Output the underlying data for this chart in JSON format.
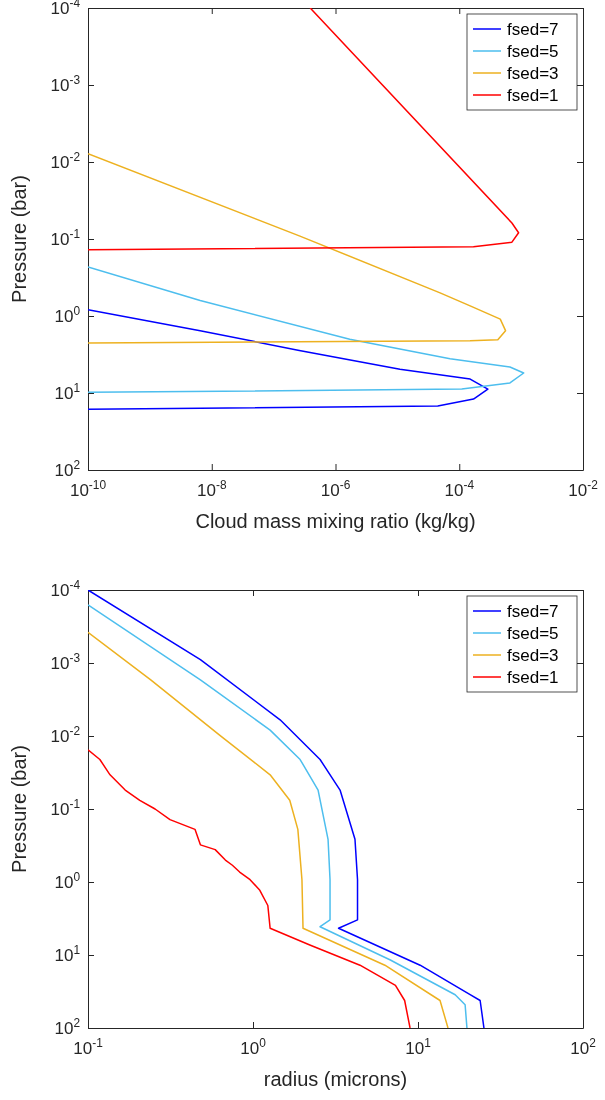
{
  "chart_data": [
    {
      "type": "line",
      "xlabel": "Cloud mass mixing ratio (kg/kg)",
      "ylabel": "Pressure (bar)",
      "log": "xy",
      "legend": "top right",
      "grid": false,
      "xlim": [
        1e-10,
        0.01
      ],
      "xticks": [
        {
          "value": 1e-10,
          "label": "10$^{-10}$"
        },
        {
          "value": 1e-08,
          "label": "10$^{-8}$"
        },
        {
          "value": 1e-06,
          "label": "10$^{-6}$"
        },
        {
          "value": 0.0001,
          "label": "10$^{-4}$"
        },
        {
          "value": 0.01,
          "label": "10$^{-2}$"
        }
      ],
      "ylim": [
        100,
        0.0001
      ],
      "yticks": [
        {
          "value": 0.0001,
          "label": "10$^{-4}$"
        },
        {
          "value": 0.001,
          "label": "10$^{-3}$"
        },
        {
          "value": 0.01,
          "label": "10$^{-2}$"
        },
        {
          "value": 0.1,
          "label": "10$^{-1}$"
        },
        {
          "value": 1,
          "label": "10$^{0}$"
        },
        {
          "value": 10,
          "label": "10$^{1}$"
        },
        {
          "value": 100,
          "label": "10$^{2}$"
        }
      ],
      "series": [
        {
          "name": "fsed=7",
          "color": "#0000ff",
          "x": [
            1e-10,
            6.5e-09,
            2.6e-07,
            1.1e-05,
            0.00015,
            0.00029,
            0.00017,
            4.5e-05,
            1e-10
          ],
          "values": [
            0.83,
            1.55,
            2.8,
            4.9,
            6.6,
            8.9,
            12,
            14.8,
            16.2
          ]
        },
        {
          "name": "fsed=5",
          "color": "#4dbeee",
          "x": [
            1e-10,
            6.5e-09,
            1.7e-06,
            7.1e-05,
            0.00066,
            0.0011,
            0.00066,
            0.00011,
            1e-10
          ],
          "values": [
            0.23,
            0.63,
            2.0,
            3.6,
            4.6,
            5.5,
            7.4,
            8.9,
            9.8
          ]
        },
        {
          "name": "fsed=3",
          "color": "#edb120",
          "x": [
            1e-10,
            2.6e-07,
            4.9e-05,
            0.00015,
            0.00046,
            0.00056,
            0.00042,
            0.00015,
            1e-10
          ],
          "values": [
            0.0078,
            0.091,
            0.5,
            0.74,
            1.1,
            1.55,
            2.04,
            2.1,
            2.24
          ]
        },
        {
          "name": "fsed=1",
          "color": "#ff0000",
          "x": [
            3.9e-07,
            0.00071,
            0.00091,
            0.00071,
            0.00017,
            1e-10
          ],
          "values": [
            0.0001,
            0.062,
            0.083,
            0.11,
            0.126,
            0.138
          ]
        }
      ]
    },
    {
      "type": "line",
      "xlabel": "radius (microns)",
      "ylabel": "Pressure (bar)",
      "log": "xy",
      "legend": "top right",
      "grid": false,
      "xlim": [
        0.1,
        100
      ],
      "xticks": [
        {
          "value": 0.1,
          "label": "10$^{-1}$"
        },
        {
          "value": 1,
          "label": "10$^{0}$"
        },
        {
          "value": 10,
          "label": "10$^{1}$"
        },
        {
          "value": 100,
          "label": "10$^{2}$"
        }
      ],
      "ylim": [
        100,
        0.0001
      ],
      "yticks": [
        {
          "value": 0.0001,
          "label": "10$^{-4}$"
        },
        {
          "value": 0.001,
          "label": "10$^{-3}$"
        },
        {
          "value": 0.01,
          "label": "10$^{-2}$"
        },
        {
          "value": 0.1,
          "label": "10$^{-1}$"
        },
        {
          "value": 1,
          "label": "10$^{0}$"
        },
        {
          "value": 10,
          "label": "10$^{1}$"
        },
        {
          "value": 100,
          "label": "10$^{2}$"
        }
      ],
      "series": [
        {
          "name": "fsed=7",
          "color": "#0000ff",
          "x": [
            0.1,
            0.48,
            1.46,
            2.55,
            3.37,
            4.15,
            4.3,
            4.3,
            3.3,
            10.3,
            20.7,
            23.8,
            25.1
          ],
          "values": [
            0.0001,
            0.0009,
            0.006,
            0.021,
            0.055,
            0.26,
            0.93,
            3.3,
            4.3,
            13.8,
            35,
            42,
            100
          ]
        },
        {
          "name": "fsed=5",
          "color": "#4dbeee",
          "x": [
            0.1,
            0.48,
            1.27,
            1.93,
            2.48,
            2.85,
            2.93,
            2.93,
            2.55,
            6.8,
            16.8,
            19.3,
            19.8
          ],
          "values": [
            0.00016,
            0.0017,
            0.0083,
            0.021,
            0.055,
            0.26,
            0.93,
            3.3,
            4.1,
            11.7,
            35,
            48,
            100
          ]
        },
        {
          "name": "fsed=3",
          "color": "#edb120",
          "x": [
            0.1,
            0.24,
            0.63,
            1.27,
            1.67,
            1.87,
            1.98,
            2.01,
            6.3,
            13.6,
            15.2
          ],
          "values": [
            0.00038,
            0.0017,
            0.0098,
            0.034,
            0.076,
            0.19,
            0.93,
            4.3,
            13.8,
            42,
            100
          ]
        },
        {
          "name": "fsed=1",
          "color": "#ff0000",
          "x": [
            0.1,
            0.118,
            0.136,
            0.168,
            0.206,
            0.255,
            0.314,
            0.445,
            0.48,
            0.59,
            0.68,
            0.75,
            0.83,
            0.96,
            1.1,
            1.23,
            1.27,
            2.21,
            4.45,
            7.3,
            8.3,
            8.95
          ],
          "values": [
            0.0155,
            0.021,
            0.034,
            0.055,
            0.076,
            0.1,
            0.14,
            0.19,
            0.31,
            0.36,
            0.5,
            0.59,
            0.73,
            0.93,
            1.3,
            2.1,
            4.3,
            7.3,
            13.8,
            26,
            42,
            100
          ]
        }
      ]
    }
  ]
}
